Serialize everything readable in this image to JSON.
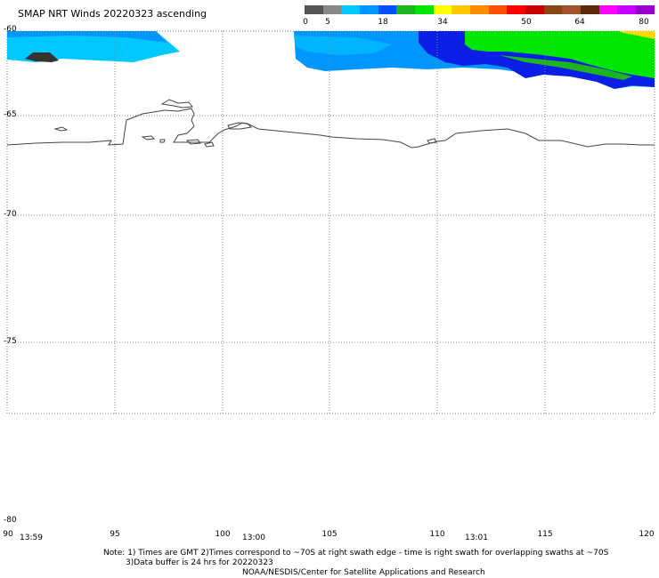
{
  "title": "SMAP NRT Winds 20220323 ascending",
  "legend": {
    "ticks": [
      "0",
      "5",
      "18",
      "34",
      "50",
      "64",
      "80"
    ],
    "colors": [
      "#555555",
      "#888888",
      "#00c8ff",
      "#0096ff",
      "#0050ff",
      "#1eb41e",
      "#00e600",
      "#ffff00",
      "#ffc800",
      "#ff8c00",
      "#ff5000",
      "#ff0000",
      "#c80000",
      "#8b4513",
      "#a0522d",
      "#5a2a0a",
      "#ff00ff",
      "#c800ff",
      "#9900cc"
    ]
  },
  "map": {
    "lat_labels": [
      "-60",
      "-65",
      "-70",
      "-75",
      "-80"
    ],
    "lon_labels": [
      "90",
      "95",
      "100",
      "105",
      "110",
      "115",
      "120"
    ],
    "time_labels": [
      "13:59",
      "13:00",
      "13:01"
    ],
    "colors": {
      "cyan": "#00c8ff",
      "blue_light": "#0096ff",
      "blue": "#0050ff",
      "blue_dark": "#0a1ee6",
      "green": "#00e600",
      "green_dark": "#1eb41e",
      "yellow": "#ffd700",
      "gray": "#333333"
    }
  },
  "notes": {
    "line1": "Note: 1) Times are GMT 2)Times correspond to ~70S at right swath edge - time is right swath for overlapping swaths at ~70S",
    "line2": "3)Data buffer is 24 hrs for 20220323",
    "line3": "NOAA/NESDIS/Center for Satellite Applications and Research"
  }
}
